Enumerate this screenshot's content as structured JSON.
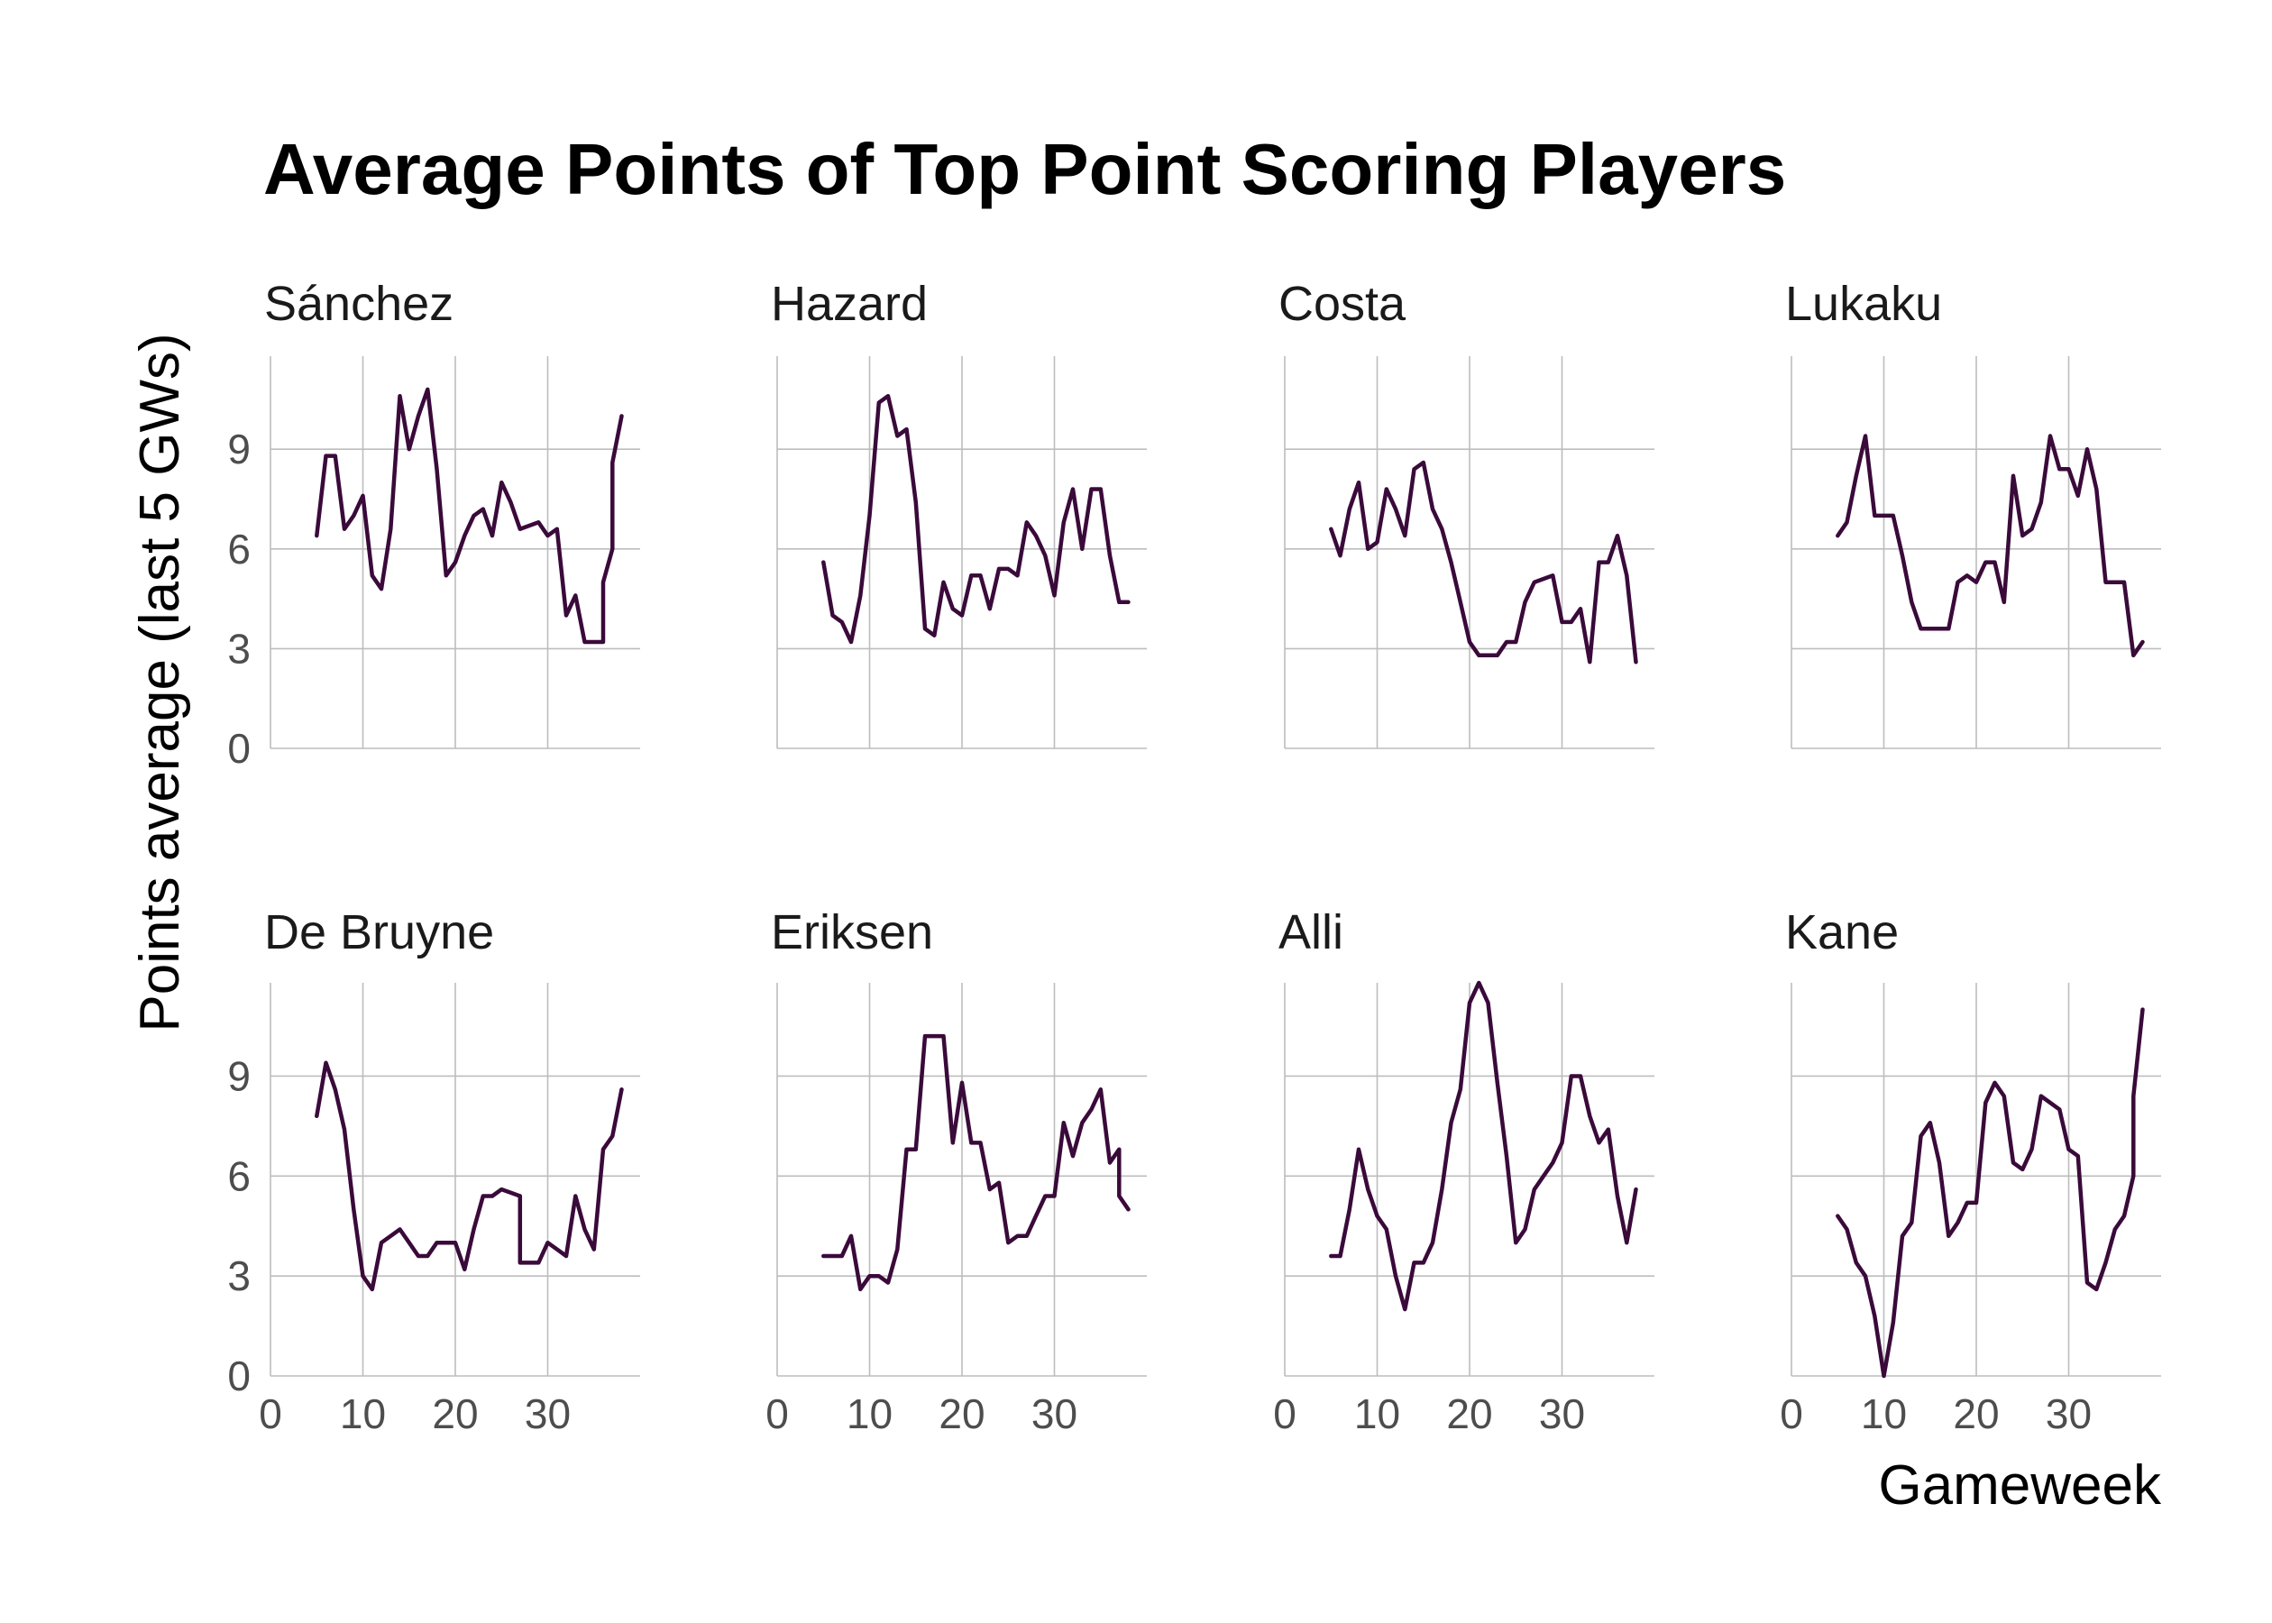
{
  "chart_data": {
    "type": "line",
    "title": "Average Points of Top Point Scoring Players",
    "xlabel": "Gameweek",
    "ylabel": "Points average (last 5 GWs)",
    "xlim": [
      0,
      40
    ],
    "ylim": [
      0,
      11.8
    ],
    "x_ticks": [
      0,
      10,
      20,
      30
    ],
    "y_ticks": [
      0,
      3,
      6,
      9
    ],
    "grid": true,
    "line_color": "#3a0a3a",
    "layout": "facets 2 rows x 4 columns",
    "panels": [
      {
        "name": "Sánchez",
        "x": [
          5,
          6,
          7,
          8,
          9,
          10,
          11,
          12,
          13,
          14,
          15,
          16,
          17,
          18,
          19,
          20,
          21,
          22,
          23,
          24,
          25,
          26,
          27,
          28,
          29,
          30,
          31,
          32,
          33,
          34,
          35,
          36,
          36,
          37,
          37,
          38
        ],
        "y": [
          6.4,
          8.8,
          8.8,
          6.6,
          7.0,
          7.6,
          5.2,
          4.8,
          6.6,
          10.6,
          9.0,
          10.0,
          10.8,
          8.4,
          5.2,
          5.6,
          6.4,
          7.0,
          7.2,
          6.4,
          8.0,
          7.4,
          6.6,
          6.7,
          6.8,
          6.4,
          6.6,
          4.0,
          4.6,
          3.2,
          3.2,
          3.2,
          5.0,
          6.0,
          8.6,
          10.0
        ]
      },
      {
        "name": "Hazard",
        "x": [
          5,
          6,
          7,
          8,
          9,
          10,
          11,
          12,
          13,
          14,
          15,
          16,
          17,
          18,
          19,
          20,
          21,
          22,
          23,
          24,
          25,
          26,
          27,
          28,
          29,
          30,
          31,
          32,
          33,
          34,
          35,
          36,
          37,
          38
        ],
        "y": [
          5.6,
          4.0,
          3.8,
          3.2,
          4.6,
          7.0,
          10.4,
          10.6,
          9.4,
          9.6,
          7.4,
          3.6,
          3.4,
          5.0,
          4.2,
          4.0,
          5.2,
          5.2,
          4.2,
          5.4,
          5.4,
          5.2,
          6.8,
          6.4,
          5.8,
          4.6,
          6.8,
          7.8,
          6.0,
          7.8,
          7.8,
          5.8,
          4.4,
          4.4
        ]
      },
      {
        "name": "Costa",
        "x": [
          5,
          6,
          7,
          8,
          9,
          10,
          11,
          12,
          13,
          14,
          15,
          16,
          17,
          18,
          19,
          20,
          21,
          22,
          23,
          24,
          25,
          26,
          27,
          28,
          29,
          30,
          31,
          32,
          33,
          34,
          35,
          36,
          37,
          38
        ],
        "y": [
          6.6,
          5.8,
          7.2,
          8.0,
          6.0,
          6.2,
          7.8,
          7.2,
          6.4,
          8.4,
          8.6,
          7.2,
          6.6,
          5.6,
          4.4,
          3.2,
          2.8,
          2.8,
          2.8,
          3.2,
          3.2,
          4.4,
          5.0,
          5.1,
          5.2,
          3.8,
          3.8,
          4.2,
          2.6,
          5.6,
          5.6,
          6.4,
          5.2,
          2.6
        ]
      },
      {
        "name": "Lukaku",
        "x": [
          5,
          6,
          7,
          8,
          9,
          10,
          11,
          12,
          13,
          14,
          15,
          16,
          17,
          18,
          19,
          20,
          21,
          22,
          23,
          24,
          25,
          26,
          27,
          28,
          29,
          30,
          31,
          32,
          33,
          34,
          35,
          36,
          37,
          38
        ],
        "y": [
          6.4,
          6.8,
          8.2,
          9.4,
          7.0,
          7.0,
          7.0,
          5.8,
          4.4,
          3.6,
          3.6,
          3.6,
          3.6,
          5.0,
          5.2,
          5.0,
          5.6,
          5.6,
          4.4,
          8.2,
          6.4,
          6.6,
          7.4,
          9.4,
          8.4,
          8.4,
          7.6,
          9.0,
          7.8,
          5.0,
          5.0,
          5.0,
          2.8,
          3.2
        ]
      },
      {
        "name": "De Bruyne",
        "x": [
          5,
          6,
          7,
          8,
          9,
          10,
          11,
          12,
          13,
          14,
          15,
          16,
          17,
          18,
          19,
          20,
          21,
          22,
          23,
          24,
          25,
          26,
          27,
          27,
          28,
          29,
          30,
          31,
          32,
          33,
          34,
          35,
          36,
          37,
          38
        ],
        "y": [
          7.8,
          9.4,
          8.6,
          7.4,
          5.0,
          3.0,
          2.6,
          4.0,
          4.2,
          4.4,
          4.0,
          3.6,
          3.6,
          4.0,
          4.0,
          4.0,
          3.2,
          4.4,
          5.4,
          5.4,
          5.6,
          5.5,
          5.4,
          3.4,
          3.4,
          3.4,
          4.0,
          3.8,
          3.6,
          5.4,
          4.4,
          3.8,
          6.8,
          7.2,
          8.6
        ]
      },
      {
        "name": "Eriksen",
        "x": [
          5,
          6,
          7,
          8,
          9,
          10,
          11,
          12,
          13,
          14,
          15,
          16,
          17,
          18,
          19,
          20,
          21,
          22,
          23,
          24,
          25,
          26,
          27,
          28,
          29,
          30,
          31,
          32,
          33,
          34,
          35,
          36,
          37,
          37,
          38
        ],
        "y": [
          3.6,
          3.6,
          3.6,
          4.2,
          2.6,
          3.0,
          3.0,
          2.8,
          3.8,
          6.8,
          6.8,
          10.2,
          10.2,
          10.2,
          7.0,
          8.8,
          7.0,
          7.0,
          5.6,
          5.8,
          4.0,
          4.2,
          4.2,
          4.8,
          5.4,
          5.4,
          7.6,
          6.6,
          7.6,
          8.0,
          8.6,
          6.4,
          6.8,
          5.4,
          5.0
        ]
      },
      {
        "name": "Alli",
        "x": [
          5,
          6,
          7,
          8,
          9,
          10,
          11,
          12,
          13,
          14,
          15,
          16,
          17,
          18,
          19,
          20,
          21,
          22,
          23,
          24,
          25,
          26,
          27,
          28,
          29,
          30,
          31,
          32,
          33,
          34,
          35,
          36,
          37,
          38
        ],
        "y": [
          3.6,
          3.6,
          5.0,
          6.8,
          5.6,
          4.8,
          4.4,
          3.0,
          2.0,
          3.4,
          3.4,
          4.0,
          5.6,
          7.6,
          8.6,
          11.2,
          11.8,
          11.2,
          8.8,
          6.6,
          4.0,
          4.4,
          5.6,
          6.0,
          6.4,
          7.0,
          9.0,
          9.0,
          7.8,
          7.0,
          7.4,
          5.4,
          4.0,
          5.6
        ]
      },
      {
        "name": "Kane",
        "x": [
          5,
          6,
          7,
          8,
          9,
          10,
          11,
          12,
          13,
          14,
          15,
          16,
          17,
          18,
          19,
          20,
          21,
          22,
          23,
          24,
          25,
          26,
          27,
          28,
          29,
          30,
          31,
          32,
          33,
          34,
          35,
          36,
          37,
          37,
          38
        ],
        "y": [
          4.8,
          4.4,
          3.4,
          3.0,
          1.8,
          0.0,
          1.6,
          4.2,
          4.6,
          7.2,
          7.6,
          6.4,
          4.2,
          4.6,
          5.2,
          5.2,
          8.2,
          8.8,
          8.4,
          6.4,
          6.2,
          6.8,
          8.4,
          8.2,
          8.0,
          6.8,
          6.6,
          2.8,
          2.6,
          3.4,
          4.4,
          4.8,
          6.0,
          8.4,
          11.0
        ]
      }
    ]
  }
}
